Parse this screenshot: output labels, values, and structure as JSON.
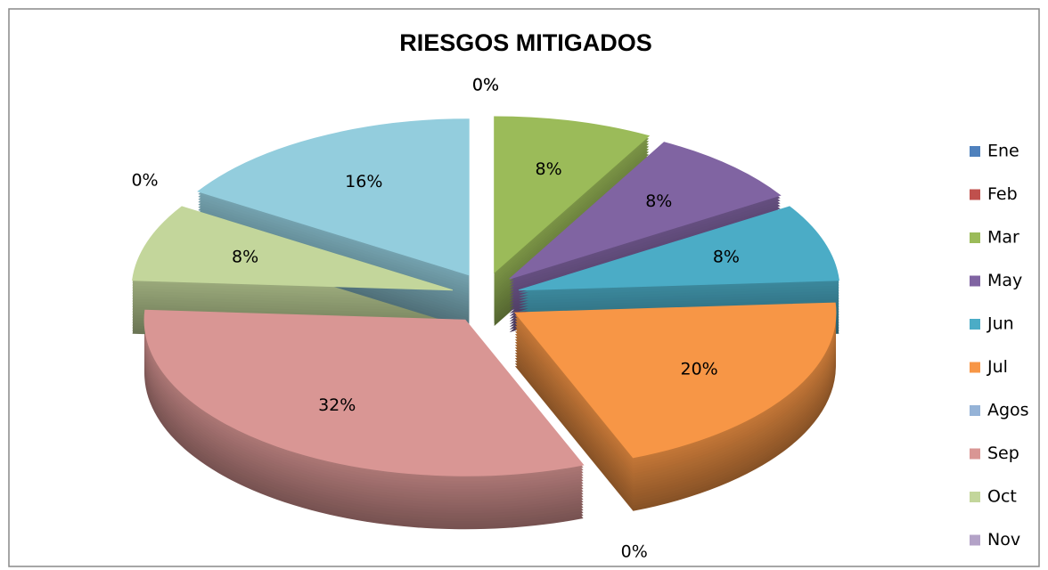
{
  "chart_data": {
    "type": "pie",
    "title": "RIESGOS MITIGADOS",
    "categories": [
      "Ene",
      "Feb",
      "Mar",
      "May",
      "Jun",
      "Jul",
      "Agos",
      "Sep",
      "Oct",
      "Nov",
      null
    ],
    "values": [
      0,
      0,
      8,
      8,
      8,
      20,
      0,
      32,
      8,
      0,
      16
    ],
    "value_labels": [
      "0%",
      "0%",
      "8%",
      "8%",
      "8%",
      "20%",
      "0%",
      "32%",
      "8%",
      "0%",
      "16%"
    ],
    "colors": [
      "#4f81bd",
      "#c0504d",
      "#9bbb59",
      "#8064a2",
      "#4bacc6",
      "#f79646",
      "#95b3d7",
      "#d99694",
      "#c3d69b",
      "#b3a2c7",
      "#93cddd"
    ],
    "legend": "right"
  }
}
